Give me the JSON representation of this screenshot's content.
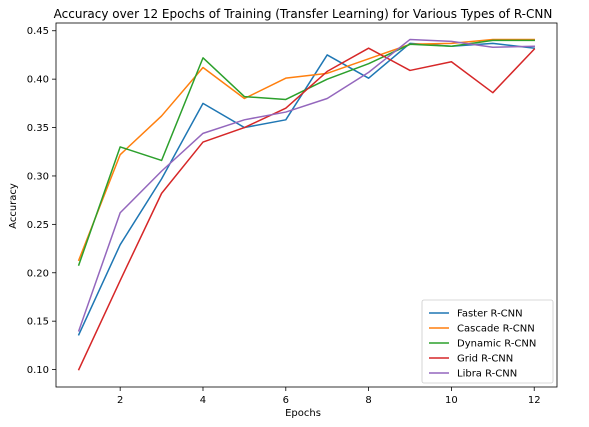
{
  "chart_data": {
    "type": "line",
    "title": "Accuracy over 12 Epochs of Training (Transfer Learning) for Various Types of R-CNN",
    "xlabel": "Epochs",
    "ylabel": "Accuracy",
    "xlim": [
      0.45,
      12.55
    ],
    "ylim": [
      0.082,
      0.458
    ],
    "x_ticks": [
      2,
      4,
      6,
      8,
      10,
      12
    ],
    "y_ticks": [
      0.1,
      0.15,
      0.2,
      0.25,
      0.3,
      0.35,
      0.4,
      0.45
    ],
    "x_tick_labels": [
      "2",
      "4",
      "6",
      "8",
      "10",
      "12"
    ],
    "y_tick_labels": [
      "0.10",
      "0.15",
      "0.20",
      "0.25",
      "0.30",
      "0.35",
      "0.40",
      "0.45"
    ],
    "grid": false,
    "legend_position": "lower-right",
    "x": [
      1,
      2,
      3,
      4,
      5,
      6,
      7,
      8,
      9,
      10,
      11,
      12
    ],
    "series": [
      {
        "name": "Faster R-CNN",
        "color": "#1f77b4",
        "values": [
          0.136,
          0.229,
          0.297,
          0.375,
          0.35,
          0.358,
          0.425,
          0.401,
          0.437,
          0.434,
          0.437,
          0.432
        ]
      },
      {
        "name": "Cascade R-CNN",
        "color": "#ff7f0e",
        "values": [
          0.213,
          0.322,
          0.362,
          0.412,
          0.38,
          0.401,
          0.406,
          0.421,
          0.436,
          0.437,
          0.441,
          0.441
        ]
      },
      {
        "name": "Dynamic R-CNN",
        "color": "#2ca02c",
        "values": [
          0.208,
          0.33,
          0.316,
          0.422,
          0.382,
          0.379,
          0.4,
          0.416,
          0.436,
          0.434,
          0.44,
          0.44
        ]
      },
      {
        "name": "Grid R-CNN",
        "color": "#d62728",
        "values": [
          0.1,
          0.192,
          0.282,
          0.335,
          0.35,
          0.37,
          0.408,
          0.432,
          0.409,
          0.418,
          0.386,
          0.431
        ]
      },
      {
        "name": "Libra R-CNN",
        "color": "#9467bd",
        "values": [
          0.14,
          0.262,
          0.305,
          0.344,
          0.358,
          0.366,
          0.38,
          0.407,
          0.441,
          0.439,
          0.433,
          0.434
        ]
      }
    ]
  }
}
